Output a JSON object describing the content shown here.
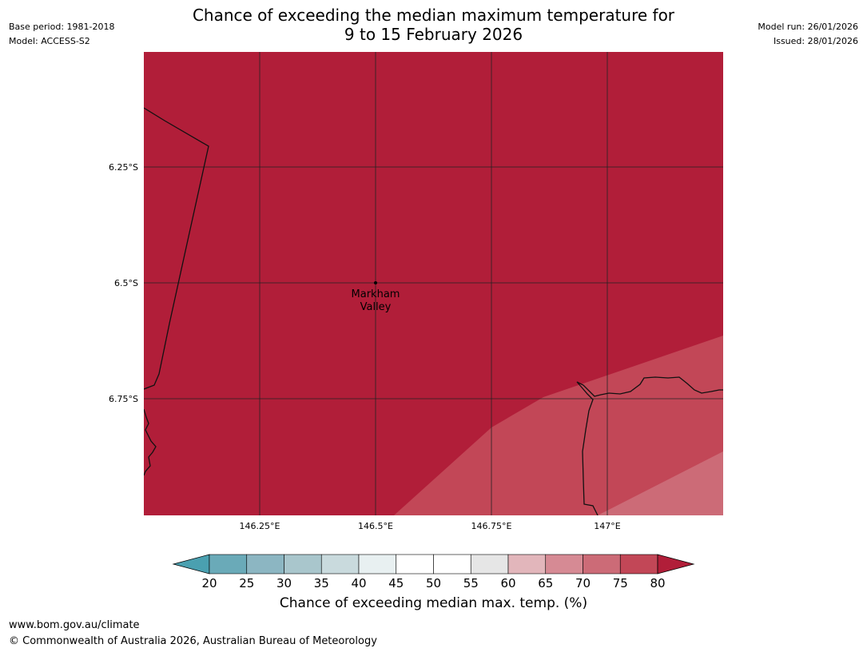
{
  "header": {
    "title_line1": "Chance of exceeding the median maximum temperature for",
    "title_line2": "9 to 15 February 2026",
    "base_period": "Base period: 1981-2018",
    "model": "Model: ACCESS-S2",
    "model_run": "Model run: 26/01/2026",
    "issued": "Issued: 28/01/2026"
  },
  "map": {
    "lat_labels": [
      "6.25°S",
      "6.5°S",
      "6.75°S"
    ],
    "lon_labels": [
      "146.25°E",
      "146.5°E",
      "146.75°E",
      "147°E"
    ],
    "place": {
      "name_line1": "Markham",
      "name_line2": "Valley"
    },
    "colors": {
      "band_80_plus": "#b11e39",
      "band_75_80": "#c24757",
      "band_70_75": "#cc6b77",
      "coast": "#111111",
      "grid": "#222222"
    }
  },
  "colorbar": {
    "ticks": [
      "20",
      "25",
      "30",
      "35",
      "40",
      "45",
      "50",
      "55",
      "60",
      "65",
      "70",
      "75",
      "80"
    ],
    "colors": [
      "#4aa0b0",
      "#6aaab8",
      "#8cb6c2",
      "#a9c6cc",
      "#c9dadd",
      "#e8f0f1",
      "#ffffff",
      "#ffffff",
      "#e6e6e6",
      "#e2b6bb",
      "#d68a94",
      "#cc6b77",
      "#c24757",
      "#b11e39"
    ],
    "label": "Chance of exceeding median max. temp. (%)"
  },
  "footer": {
    "url": "www.bom.gov.au/climate",
    "copyright": "© Commonwealth of Australia 2026, Australian Bureau of Meteorology"
  }
}
